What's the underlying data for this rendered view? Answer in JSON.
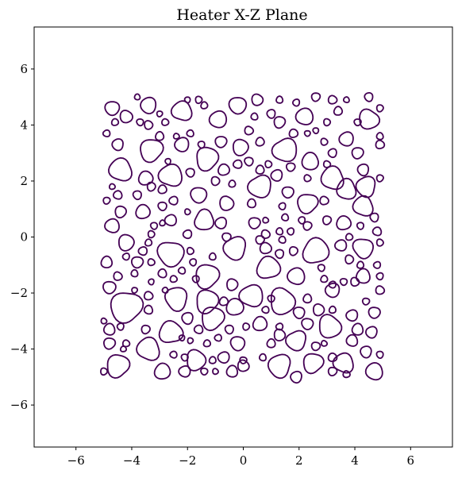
{
  "chart_data": {
    "type": "contour",
    "title": "Heater X-Z Plane",
    "xlabel": "",
    "ylabel": "",
    "xlim": [
      -7.5,
      7.5
    ],
    "ylim": [
      -7.5,
      7.5
    ],
    "xticks": [
      -6,
      -4,
      -2,
      0,
      2,
      4,
      6
    ],
    "yticks": [
      -6,
      -4,
      -2,
      0,
      2,
      4,
      6
    ],
    "xtick_labels": [
      "−6",
      "−4",
      "−2",
      "0",
      "2",
      "4",
      "6"
    ],
    "ytick_labels": [
      "−6",
      "−4",
      "−2",
      "0",
      "2",
      "4",
      "6"
    ],
    "grid": false,
    "contour_color": "#440154",
    "region_extent": {
      "x": [
        -5,
        5
      ],
      "z": [
        -5,
        5
      ]
    },
    "contours": [
      {
        "cx": -4.7,
        "cy": 4.6,
        "r": 0.25
      },
      {
        "cx": -4.2,
        "cy": 4.3,
        "r": 0.22
      },
      {
        "cx": -3.8,
        "cy": 5.0,
        "r": 0.1
      },
      {
        "cx": -3.4,
        "cy": 4.7,
        "r": 0.28
      },
      {
        "cx": -3.0,
        "cy": 4.4,
        "r": 0.1
      },
      {
        "cx": -2.8,
        "cy": 4.1,
        "r": 0.12
      },
      {
        "cx": -2.2,
        "cy": 4.5,
        "r": 0.35
      },
      {
        "cx": -2.0,
        "cy": 4.9,
        "r": 0.1
      },
      {
        "cx": -1.6,
        "cy": 4.9,
        "r": 0.12
      },
      {
        "cx": -1.4,
        "cy": 4.7,
        "r": 0.12
      },
      {
        "cx": -0.9,
        "cy": 4.2,
        "r": 0.3
      },
      {
        "cx": -0.2,
        "cy": 4.7,
        "r": 0.3
      },
      {
        "cx": 0.5,
        "cy": 4.9,
        "r": 0.2
      },
      {
        "cx": 1.3,
        "cy": 4.9,
        "r": 0.12
      },
      {
        "cx": 1.9,
        "cy": 4.8,
        "r": 0.12
      },
      {
        "cx": 2.6,
        "cy": 5.0,
        "r": 0.15
      },
      {
        "cx": 3.2,
        "cy": 4.9,
        "r": 0.15
      },
      {
        "cx": 3.7,
        "cy": 4.9,
        "r": 0.1
      },
      {
        "cx": 4.5,
        "cy": 5.0,
        "r": 0.15
      },
      {
        "cx": 4.9,
        "cy": 4.6,
        "r": 0.12
      },
      {
        "cx": -4.6,
        "cy": 4.1,
        "r": 0.12
      },
      {
        "cx": -4.9,
        "cy": 3.7,
        "r": 0.12
      },
      {
        "cx": -3.7,
        "cy": 4.1,
        "r": 0.12
      },
      {
        "cx": -3.4,
        "cy": 4.0,
        "r": 0.15
      },
      {
        "cx": -3.0,
        "cy": 3.6,
        "r": 0.15
      },
      {
        "cx": -2.2,
        "cy": 3.3,
        "r": 0.25
      },
      {
        "cx": -0.8,
        "cy": 3.4,
        "r": 0.2
      },
      {
        "cx": 0.2,
        "cy": 3.8,
        "r": 0.15
      },
      {
        "cx": 0.4,
        "cy": 4.3,
        "r": 0.12
      },
      {
        "cx": 1.0,
        "cy": 4.4,
        "r": 0.15
      },
      {
        "cx": 1.3,
        "cy": 4.1,
        "r": 0.2
      },
      {
        "cx": 1.8,
        "cy": 3.7,
        "r": 0.15
      },
      {
        "cx": 2.2,
        "cy": 4.3,
        "r": 0.3
      },
      {
        "cx": 2.6,
        "cy": 3.8,
        "r": 0.1
      },
      {
        "cx": 3.0,
        "cy": 4.1,
        "r": 0.12
      },
      {
        "cx": 3.4,
        "cy": 4.5,
        "r": 0.15
      },
      {
        "cx": 3.7,
        "cy": 3.5,
        "r": 0.25
      },
      {
        "cx": 4.1,
        "cy": 4.1,
        "r": 0.12
      },
      {
        "cx": 4.5,
        "cy": 4.2,
        "r": 0.35
      },
      {
        "cx": 4.9,
        "cy": 3.6,
        "r": 0.12
      },
      {
        "cx": -4.5,
        "cy": 3.3,
        "r": 0.2
      },
      {
        "cx": -3.3,
        "cy": 3.1,
        "r": 0.4
      },
      {
        "cx": -2.4,
        "cy": 3.6,
        "r": 0.1
      },
      {
        "cx": -1.9,
        "cy": 3.7,
        "r": 0.12
      },
      {
        "cx": -1.5,
        "cy": 3.3,
        "r": 0.12
      },
      {
        "cx": -0.1,
        "cy": 3.2,
        "r": 0.28
      },
      {
        "cx": 0.6,
        "cy": 3.4,
        "r": 0.15
      },
      {
        "cx": 1.5,
        "cy": 3.1,
        "r": 0.42
      },
      {
        "cx": 2.3,
        "cy": 3.7,
        "r": 0.1
      },
      {
        "cx": 2.9,
        "cy": 3.4,
        "r": 0.12
      },
      {
        "cx": 2.4,
        "cy": 2.7,
        "r": 0.3
      },
      {
        "cx": 3.2,
        "cy": 3.0,
        "r": 0.15
      },
      {
        "cx": 4.1,
        "cy": 3.0,
        "r": 0.2
      },
      {
        "cx": 4.9,
        "cy": 3.3,
        "r": 0.15
      },
      {
        "cx": -4.4,
        "cy": 2.4,
        "r": 0.4
      },
      {
        "cx": -2.7,
        "cy": 2.7,
        "r": 0.1
      },
      {
        "cx": -1.3,
        "cy": 2.8,
        "r": 0.4
      },
      {
        "cx": -0.7,
        "cy": 2.4,
        "r": 0.2
      },
      {
        "cx": -0.2,
        "cy": 2.6,
        "r": 0.15
      },
      {
        "cx": 0.2,
        "cy": 2.7,
        "r": 0.15
      },
      {
        "cx": 0.9,
        "cy": 2.6,
        "r": 0.12
      },
      {
        "cx": 0.6,
        "cy": 2.4,
        "r": 0.15
      },
      {
        "cx": 1.2,
        "cy": 2.2,
        "r": 0.2
      },
      {
        "cx": 1.7,
        "cy": 2.5,
        "r": 0.15
      },
      {
        "cx": 3.0,
        "cy": 2.6,
        "r": 0.12
      },
      {
        "cx": 3.2,
        "cy": 2.1,
        "r": 0.4
      },
      {
        "cx": 4.3,
        "cy": 2.4,
        "r": 0.2
      },
      {
        "cx": 4.9,
        "cy": 2.1,
        "r": 0.12
      },
      {
        "cx": -3.5,
        "cy": 2.1,
        "r": 0.25
      },
      {
        "cx": -2.6,
        "cy": 2.2,
        "r": 0.4
      },
      {
        "cx": -1.9,
        "cy": 2.3,
        "r": 0.15
      },
      {
        "cx": -1.0,
        "cy": 2.0,
        "r": 0.15
      },
      {
        "cx": -0.4,
        "cy": 1.9,
        "r": 0.12
      },
      {
        "cx": 0.6,
        "cy": 1.8,
        "r": 0.4
      },
      {
        "cx": 1.6,
        "cy": 1.6,
        "r": 0.2
      },
      {
        "cx": 2.3,
        "cy": 2.1,
        "r": 0.12
      },
      {
        "cx": 3.7,
        "cy": 1.7,
        "r": 0.35
      },
      {
        "cx": 4.4,
        "cy": 1.8,
        "r": 0.35
      },
      {
        "cx": -4.9,
        "cy": 1.3,
        "r": 0.12
      },
      {
        "cx": -4.7,
        "cy": 1.8,
        "r": 0.1
      },
      {
        "cx": -4.5,
        "cy": 1.5,
        "r": 0.15
      },
      {
        "cx": -3.8,
        "cy": 1.5,
        "r": 0.15
      },
      {
        "cx": -3.3,
        "cy": 1.8,
        "r": 0.15
      },
      {
        "cx": -2.9,
        "cy": 1.7,
        "r": 0.15
      },
      {
        "cx": -2.5,
        "cy": 1.3,
        "r": 0.15
      },
      {
        "cx": -1.6,
        "cy": 1.5,
        "r": 0.28
      },
      {
        "cx": -0.6,
        "cy": 1.2,
        "r": 0.25
      },
      {
        "cx": 0.3,
        "cy": 1.2,
        "r": 0.15
      },
      {
        "cx": 1.4,
        "cy": 1.1,
        "r": 0.12
      },
      {
        "cx": 2.3,
        "cy": 1.2,
        "r": 0.35
      },
      {
        "cx": 2.9,
        "cy": 1.3,
        "r": 0.15
      },
      {
        "cx": 4.3,
        "cy": 1.1,
        "r": 0.35
      },
      {
        "cx": 4.7,
        "cy": 0.7,
        "r": 0.15
      },
      {
        "cx": -4.4,
        "cy": 0.9,
        "r": 0.2
      },
      {
        "cx": -3.6,
        "cy": 0.9,
        "r": 0.25
      },
      {
        "cx": -2.6,
        "cy": 0.6,
        "r": 0.2
      },
      {
        "cx": -2.9,
        "cy": 1.1,
        "r": 0.15
      },
      {
        "cx": -2.0,
        "cy": 0.9,
        "r": 0.1
      },
      {
        "cx": -1.4,
        "cy": 0.6,
        "r": 0.35
      },
      {
        "cx": -0.8,
        "cy": 0.5,
        "r": 0.2
      },
      {
        "cx": 0.4,
        "cy": 0.5,
        "r": 0.2
      },
      {
        "cx": 0.8,
        "cy": 0.6,
        "r": 0.1
      },
      {
        "cx": 1.5,
        "cy": 0.7,
        "r": 0.12
      },
      {
        "cx": 2.1,
        "cy": 0.6,
        "r": 0.12
      },
      {
        "cx": 3.0,
        "cy": 0.6,
        "r": 0.15
      },
      {
        "cx": 3.6,
        "cy": 0.5,
        "r": 0.25
      },
      {
        "cx": -4.7,
        "cy": 0.4,
        "r": 0.25
      },
      {
        "cx": -3.2,
        "cy": 0.4,
        "r": 0.12
      },
      {
        "cx": -3.3,
        "cy": 0.1,
        "r": 0.12
      },
      {
        "cx": -2.9,
        "cy": 0.5,
        "r": 0.1
      },
      {
        "cx": -2.0,
        "cy": 0.1,
        "r": 0.15
      },
      {
        "cx": -0.6,
        "cy": 0.0,
        "r": 0.15
      },
      {
        "cx": 0.8,
        "cy": 0.1,
        "r": 0.15
      },
      {
        "cx": 1.3,
        "cy": 0.2,
        "r": 0.12
      },
      {
        "cx": 1.7,
        "cy": 0.2,
        "r": 0.12
      },
      {
        "cx": 2.3,
        "cy": 0.4,
        "r": 0.15
      },
      {
        "cx": 3.8,
        "cy": 0.0,
        "r": 0.12
      },
      {
        "cx": 4.8,
        "cy": 0.2,
        "r": 0.15
      },
      {
        "cx": 4.2,
        "cy": 0.4,
        "r": 0.12
      },
      {
        "cx": -4.2,
        "cy": -0.2,
        "r": 0.28
      },
      {
        "cx": -3.4,
        "cy": -0.2,
        "r": 0.12
      },
      {
        "cx": -3.6,
        "cy": -0.5,
        "r": 0.15
      },
      {
        "cx": -2.6,
        "cy": -0.6,
        "r": 0.45
      },
      {
        "cx": -1.9,
        "cy": -0.5,
        "r": 0.12
      },
      {
        "cx": -1.1,
        "cy": -0.7,
        "r": 0.12
      },
      {
        "cx": -0.3,
        "cy": -0.4,
        "r": 0.4
      },
      {
        "cx": 0.6,
        "cy": -0.1,
        "r": 0.15
      },
      {
        "cx": 0.8,
        "cy": -0.4,
        "r": 0.2
      },
      {
        "cx": 1.4,
        "cy": -0.1,
        "r": 0.12
      },
      {
        "cx": 1.3,
        "cy": -0.6,
        "r": 0.15
      },
      {
        "cx": 1.8,
        "cy": -0.5,
        "r": 0.15
      },
      {
        "cx": 2.6,
        "cy": -0.5,
        "r": 0.45
      },
      {
        "cx": 3.5,
        "cy": -0.3,
        "r": 0.2
      },
      {
        "cx": 4.3,
        "cy": -0.4,
        "r": 0.35
      },
      {
        "cx": 4.9,
        "cy": -0.2,
        "r": 0.12
      },
      {
        "cx": -4.9,
        "cy": -0.9,
        "r": 0.2
      },
      {
        "cx": -4.2,
        "cy": -0.7,
        "r": 0.12
      },
      {
        "cx": -3.8,
        "cy": -0.9,
        "r": 0.2
      },
      {
        "cx": -3.3,
        "cy": -0.9,
        "r": 0.12
      },
      {
        "cx": -2.9,
        "cy": -1.3,
        "r": 0.15
      },
      {
        "cx": -1.8,
        "cy": -0.9,
        "r": 0.12
      },
      {
        "cx": -1.3,
        "cy": -1.4,
        "r": 0.42
      },
      {
        "cx": 0.9,
        "cy": -1.1,
        "r": 0.4
      },
      {
        "cx": 1.9,
        "cy": -1.4,
        "r": 0.3
      },
      {
        "cx": 2.8,
        "cy": -1.1,
        "r": 0.12
      },
      {
        "cx": 3.8,
        "cy": -0.8,
        "r": 0.15
      },
      {
        "cx": 4.2,
        "cy": -1.0,
        "r": 0.12
      },
      {
        "cx": 4.8,
        "cy": -1.0,
        "r": 0.12
      },
      {
        "cx": -4.8,
        "cy": -1.8,
        "r": 0.22
      },
      {
        "cx": -4.5,
        "cy": -1.4,
        "r": 0.15
      },
      {
        "cx": -3.9,
        "cy": -1.3,
        "r": 0.12
      },
      {
        "cx": -3.3,
        "cy": -1.6,
        "r": 0.1
      },
      {
        "cx": -3.9,
        "cy": -1.9,
        "r": 0.1
      },
      {
        "cx": -2.5,
        "cy": -1.5,
        "r": 0.12
      },
      {
        "cx": -2.2,
        "cy": -1.2,
        "r": 0.12
      },
      {
        "cx": -1.7,
        "cy": -1.5,
        "r": 0.12
      },
      {
        "cx": -0.4,
        "cy": -1.7,
        "r": 0.2
      },
      {
        "cx": 2.9,
        "cy": -1.5,
        "r": 0.12
      },
      {
        "cx": 3.2,
        "cy": -1.7,
        "r": 0.12
      },
      {
        "cx": 3.6,
        "cy": -1.6,
        "r": 0.12
      },
      {
        "cx": 4.0,
        "cy": -1.6,
        "r": 0.15
      },
      {
        "cx": 4.3,
        "cy": -1.4,
        "r": 0.25
      },
      {
        "cx": 4.9,
        "cy": -1.4,
        "r": 0.12
      },
      {
        "cx": -4.2,
        "cy": -2.5,
        "r": 0.55
      },
      {
        "cx": -3.4,
        "cy": -2.1,
        "r": 0.15
      },
      {
        "cx": -2.8,
        "cy": -1.9,
        "r": 0.1
      },
      {
        "cx": -2.4,
        "cy": -2.2,
        "r": 0.4
      },
      {
        "cx": -1.3,
        "cy": -2.3,
        "r": 0.4
      },
      {
        "cx": -0.7,
        "cy": -2.3,
        "r": 0.15
      },
      {
        "cx": 0.3,
        "cy": -2.1,
        "r": 0.4
      },
      {
        "cx": 1.0,
        "cy": -2.2,
        "r": 0.12
      },
      {
        "cx": 1.4,
        "cy": -2.3,
        "r": 0.45
      },
      {
        "cx": 2.3,
        "cy": -2.2,
        "r": 0.15
      },
      {
        "cx": 3.2,
        "cy": -1.9,
        "r": 0.25
      },
      {
        "cx": 4.4,
        "cy": -2.3,
        "r": 0.12
      },
      {
        "cx": 4.9,
        "cy": -1.9,
        "r": 0.15
      },
      {
        "cx": -3.4,
        "cy": -2.6,
        "r": 0.15
      },
      {
        "cx": -2.0,
        "cy": -2.9,
        "r": 0.2
      },
      {
        "cx": -1.1,
        "cy": -2.9,
        "r": 0.4
      },
      {
        "cx": -0.3,
        "cy": -2.5,
        "r": 0.3
      },
      {
        "cx": 0.8,
        "cy": -2.6,
        "r": 0.12
      },
      {
        "cx": 2.0,
        "cy": -2.7,
        "r": 0.2
      },
      {
        "cx": 2.7,
        "cy": -2.6,
        "r": 0.2
      },
      {
        "cx": 3.2,
        "cy": -2.6,
        "r": 0.12
      },
      {
        "cx": 3.9,
        "cy": -2.8,
        "r": 0.2
      },
      {
        "cx": 4.7,
        "cy": -2.7,
        "r": 0.2
      },
      {
        "cx": -5.0,
        "cy": -3.0,
        "r": 0.1
      },
      {
        "cx": -4.8,
        "cy": -3.3,
        "r": 0.2
      },
      {
        "cx": -4.4,
        "cy": -3.2,
        "r": 0.12
      },
      {
        "cx": -3.5,
        "cy": -3.3,
        "r": 0.15
      },
      {
        "cx": -2.6,
        "cy": -3.4,
        "r": 0.4
      },
      {
        "cx": -1.6,
        "cy": -3.3,
        "r": 0.15
      },
      {
        "cx": -0.5,
        "cy": -3.3,
        "r": 0.15
      },
      {
        "cx": 0.1,
        "cy": -3.2,
        "r": 0.12
      },
      {
        "cx": 0.6,
        "cy": -3.1,
        "r": 0.25
      },
      {
        "cx": 1.3,
        "cy": -3.2,
        "r": 0.12
      },
      {
        "cx": 2.3,
        "cy": -3.1,
        "r": 0.2
      },
      {
        "cx": 3.1,
        "cy": -3.2,
        "r": 0.4
      },
      {
        "cx": 4.1,
        "cy": -3.3,
        "r": 0.2
      },
      {
        "cx": 4.6,
        "cy": -3.4,
        "r": 0.2
      },
      {
        "cx": -4.8,
        "cy": -3.8,
        "r": 0.2
      },
      {
        "cx": -4.2,
        "cy": -3.8,
        "r": 0.12
      },
      {
        "cx": -3.4,
        "cy": -4.0,
        "r": 0.4
      },
      {
        "cx": -2.2,
        "cy": -3.6,
        "r": 0.1
      },
      {
        "cx": -1.9,
        "cy": -3.7,
        "r": 0.1
      },
      {
        "cx": -1.3,
        "cy": -3.8,
        "r": 0.12
      },
      {
        "cx": -0.9,
        "cy": -3.6,
        "r": 0.12
      },
      {
        "cx": -0.2,
        "cy": -3.8,
        "r": 0.25
      },
      {
        "cx": 1.3,
        "cy": -3.5,
        "r": 0.2
      },
      {
        "cx": 1.0,
        "cy": -3.8,
        "r": 0.15
      },
      {
        "cx": 1.9,
        "cy": -3.7,
        "r": 0.35
      },
      {
        "cx": 2.6,
        "cy": -3.9,
        "r": 0.15
      },
      {
        "cx": 2.9,
        "cy": -3.8,
        "r": 0.1
      },
      {
        "cx": 3.9,
        "cy": -3.7,
        "r": 0.2
      },
      {
        "cx": 4.4,
        "cy": -4.1,
        "r": 0.2
      },
      {
        "cx": -4.5,
        "cy": -4.6,
        "r": 0.4
      },
      {
        "cx": -4.3,
        "cy": -4.0,
        "r": 0.1
      },
      {
        "cx": -2.5,
        "cy": -4.2,
        "r": 0.12
      },
      {
        "cx": -2.1,
        "cy": -4.3,
        "r": 0.12
      },
      {
        "cx": -1.7,
        "cy": -4.4,
        "r": 0.35
      },
      {
        "cx": -1.1,
        "cy": -4.4,
        "r": 0.12
      },
      {
        "cx": -0.7,
        "cy": -4.3,
        "r": 0.2
      },
      {
        "cx": 0.0,
        "cy": -4.4,
        "r": 0.12
      },
      {
        "cx": 0.0,
        "cy": -4.6,
        "r": 0.2
      },
      {
        "cx": 0.7,
        "cy": -4.3,
        "r": 0.12
      },
      {
        "cx": 1.3,
        "cy": -4.6,
        "r": 0.4
      },
      {
        "cx": 2.5,
        "cy": -4.5,
        "r": 0.35
      },
      {
        "cx": 3.2,
        "cy": -4.3,
        "r": 0.15
      },
      {
        "cx": 3.6,
        "cy": -4.5,
        "r": 0.35
      },
      {
        "cx": 4.9,
        "cy": -4.2,
        "r": 0.12
      },
      {
        "cx": -5.0,
        "cy": -4.8,
        "r": 0.12
      },
      {
        "cx": -2.9,
        "cy": -4.8,
        "r": 0.28
      },
      {
        "cx": -2.1,
        "cy": -4.8,
        "r": 0.2
      },
      {
        "cx": -1.4,
        "cy": -4.8,
        "r": 0.12
      },
      {
        "cx": -1.0,
        "cy": -4.8,
        "r": 0.1
      },
      {
        "cx": -0.4,
        "cy": -4.8,
        "r": 0.2
      },
      {
        "cx": 1.9,
        "cy": -5.0,
        "r": 0.2
      },
      {
        "cx": 3.2,
        "cy": -4.8,
        "r": 0.15
      },
      {
        "cx": 3.7,
        "cy": -4.9,
        "r": 0.12
      },
      {
        "cx": 4.7,
        "cy": -4.8,
        "r": 0.3
      }
    ]
  }
}
